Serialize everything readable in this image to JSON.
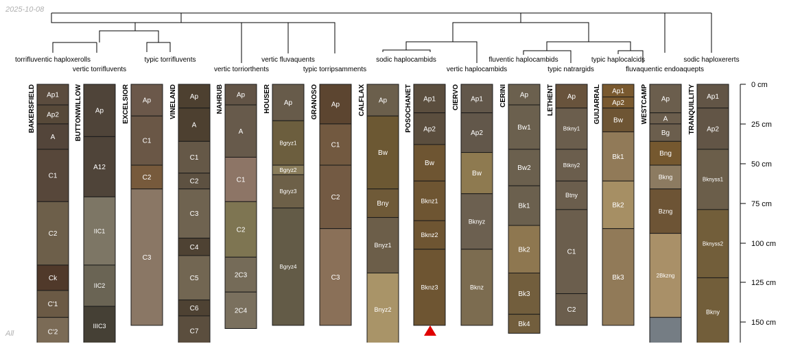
{
  "header": {
    "date": "2025-10-08"
  },
  "footer": {
    "label": "All"
  },
  "scale": {
    "label_0": "0 cm",
    "label_25": "25 cm",
    "label_50": "50 cm",
    "label_75": "75 cm",
    "label_100": "100 cm",
    "label_125": "125 cm",
    "label_150": "150 cm"
  },
  "taxa": [
    "torrifluventic haploxerolls",
    "vertic torrifluvents",
    "typic torrifluvents",
    "vertic torriorthents",
    "vertic fluvaquents",
    "typic torripsamments",
    "sodic haplocambids",
    "vertic haplocambids",
    "fluventic haplocambids",
    "typic natrargids",
    "typic haplocalcids",
    "fluvaquentic endoaquepts",
    "sodic haploxererts"
  ],
  "profiles": [
    {
      "name": "BAKERSFIELD",
      "horizons": [
        {
          "name": "Ap1",
          "top": 0,
          "bottom": 13,
          "color": "#5b4c3e"
        },
        {
          "name": "Ap2",
          "top": 13,
          "bottom": 25,
          "color": "#574939"
        },
        {
          "name": "A",
          "top": 25,
          "bottom": 41,
          "color": "#53453a"
        },
        {
          "name": "C1",
          "top": 41,
          "bottom": 74,
          "color": "#57473a"
        },
        {
          "name": "C2",
          "top": 74,
          "bottom": 114,
          "color": "#6d5f4a"
        },
        {
          "name": "Ck",
          "top": 114,
          "bottom": 130,
          "color": "#50392a"
        },
        {
          "name": "C'1",
          "top": 130,
          "bottom": 147,
          "color": "#6b5a45"
        },
        {
          "name": "C'2",
          "top": 147,
          "bottom": 165,
          "color": "#7b6b56"
        }
      ]
    },
    {
      "name": "BUTTONWILLOW",
      "horizons": [
        {
          "name": "Ap",
          "top": 0,
          "bottom": 33,
          "color": "#4f4439"
        },
        {
          "name": "A12",
          "top": 33,
          "bottom": 71,
          "color": "#4f4439"
        },
        {
          "name": "IIC1",
          "top": 71,
          "bottom": 114,
          "color": "#7d7665"
        },
        {
          "name": "IIC2",
          "top": 114,
          "bottom": 140,
          "color": "#6a6454"
        },
        {
          "name": "IIIC3",
          "top": 140,
          "bottom": 165,
          "color": "#454035"
        }
      ]
    },
    {
      "name": "EXCELSIOR",
      "horizons": [
        {
          "name": "Ap",
          "top": 0,
          "bottom": 20,
          "color": "#6b584a"
        },
        {
          "name": "C1",
          "top": 20,
          "bottom": 51,
          "color": "#6a5746"
        },
        {
          "name": "C2",
          "top": 51,
          "bottom": 66,
          "color": "#775a3c"
        },
        {
          "name": "C3",
          "top": 66,
          "bottom": 152,
          "color": "#8a7765"
        }
      ]
    },
    {
      "name": "VINELAND",
      "horizons": [
        {
          "name": "Ap",
          "top": 0,
          "bottom": 15,
          "color": "#4d4030"
        },
        {
          "name": "A",
          "top": 15,
          "bottom": 36,
          "color": "#4d4030"
        },
        {
          "name": "C1",
          "top": 36,
          "bottom": 56,
          "color": "#655847"
        },
        {
          "name": "C2",
          "top": 56,
          "bottom": 66,
          "color": "#5d5141"
        },
        {
          "name": "C3",
          "top": 66,
          "bottom": 97,
          "color": "#6f6350"
        },
        {
          "name": "C4",
          "top": 97,
          "bottom": 108,
          "color": "#4e4233"
        },
        {
          "name": "C5",
          "top": 108,
          "bottom": 136,
          "color": "#726652"
        },
        {
          "name": "C6",
          "top": 136,
          "bottom": 146,
          "color": "#4e4233"
        },
        {
          "name": "C7",
          "top": 146,
          "bottom": 165,
          "color": "#5b4e3e"
        }
      ]
    },
    {
      "name": "NAHRUB",
      "horizons": [
        {
          "name": "Ap",
          "top": 0,
          "bottom": 13,
          "color": "#625446"
        },
        {
          "name": "A",
          "top": 13,
          "bottom": 46,
          "color": "#675a4b"
        },
        {
          "name": "C1",
          "top": 46,
          "bottom": 74,
          "color": "#8d7566"
        },
        {
          "name": "C2",
          "top": 74,
          "bottom": 109,
          "color": "#7e7552"
        },
        {
          "name": "2C3",
          "top": 109,
          "bottom": 131,
          "color": "#756b58"
        },
        {
          "name": "2C4",
          "top": 131,
          "bottom": 154,
          "color": "#7a705e"
        }
      ]
    },
    {
      "name": "HOUSER",
      "horizons": [
        {
          "name": "Ap",
          "top": 0,
          "bottom": 23,
          "color": "#675b4a"
        },
        {
          "name": "Bgryz1",
          "top": 23,
          "bottom": 51,
          "color": "#6c5e3e"
        },
        {
          "name": "Bgryz2",
          "top": 51,
          "bottom": 57,
          "color": "#8a7d5b"
        },
        {
          "name": "Bgryz3",
          "top": 57,
          "bottom": 78,
          "color": "#6d6048"
        },
        {
          "name": "Bgryz4",
          "top": 78,
          "bottom": 152,
          "color": "#635b47"
        }
      ]
    },
    {
      "name": "GRANOSO",
      "horizons": [
        {
          "name": "Ap",
          "top": 0,
          "bottom": 25,
          "color": "#5c4530"
        },
        {
          "name": "C1",
          "top": 25,
          "bottom": 51,
          "color": "#725940"
        },
        {
          "name": "C2",
          "top": 51,
          "bottom": 91,
          "color": "#735a43"
        },
        {
          "name": "C3",
          "top": 91,
          "bottom": 152,
          "color": "#8a7058"
        }
      ]
    },
    {
      "name": "CALFLAX",
      "horizons": [
        {
          "name": "Ap",
          "top": 0,
          "bottom": 20,
          "color": "#6b5f4c"
        },
        {
          "name": "Bw",
          "top": 20,
          "bottom": 66,
          "color": "#6c5833"
        },
        {
          "name": "Bny",
          "top": 66,
          "bottom": 84,
          "color": "#6f5a38"
        },
        {
          "name": "Bnyz1",
          "top": 84,
          "bottom": 119,
          "color": "#6c5e49"
        },
        {
          "name": "Bnyz2",
          "top": 119,
          "bottom": 165,
          "color": "#a99468"
        }
      ]
    },
    {
      "name": "POSOCHANET",
      "horizons": [
        {
          "name": "Ap1",
          "top": 0,
          "bottom": 18,
          "color": "#5b4e3e"
        },
        {
          "name": "Ap2",
          "top": 18,
          "bottom": 38,
          "color": "#5b4e3e"
        },
        {
          "name": "Bw",
          "top": 38,
          "bottom": 61,
          "color": "#6e5532"
        },
        {
          "name": "Bknz1",
          "top": 61,
          "bottom": 86,
          "color": "#6e5532"
        },
        {
          "name": "Bknz2",
          "top": 86,
          "bottom": 104,
          "color": "#6e5532"
        },
        {
          "name": "Bknz3",
          "top": 104,
          "bottom": 152,
          "color": "#6e5532"
        }
      ]
    },
    {
      "name": "CIERVO",
      "horizons": [
        {
          "name": "Ap1",
          "top": 0,
          "bottom": 18,
          "color": "#62574a"
        },
        {
          "name": "Ap2",
          "top": 18,
          "bottom": 43,
          "color": "#62574a"
        },
        {
          "name": "Bw",
          "top": 43,
          "bottom": 69,
          "color": "#8e7a50"
        },
        {
          "name": "Bknyz",
          "top": 69,
          "bottom": 104,
          "color": "#6c6050"
        },
        {
          "name": "Bknz",
          "top": 104,
          "bottom": 152,
          "color": "#7c6c50"
        }
      ]
    },
    {
      "name": "CERINI",
      "horizons": [
        {
          "name": "Ap",
          "top": 0,
          "bottom": 13,
          "color": "#6b604e"
        },
        {
          "name": "Bw1",
          "top": 13,
          "bottom": 41,
          "color": "#6b604e"
        },
        {
          "name": "Bw2",
          "top": 41,
          "bottom": 64,
          "color": "#6b604e"
        },
        {
          "name": "Bk1",
          "top": 64,
          "bottom": 89,
          "color": "#6b604e"
        },
        {
          "name": "Bk2",
          "top": 89,
          "bottom": 119,
          "color": "#8e7750"
        },
        {
          "name": "Bk3",
          "top": 119,
          "bottom": 145,
          "color": "#725e3d"
        },
        {
          "name": "Bk4",
          "top": 145,
          "bottom": 157,
          "color": "#725e3d"
        }
      ]
    },
    {
      "name": "LETHENT",
      "horizons": [
        {
          "name": "Ap",
          "top": 0,
          "bottom": 15,
          "color": "#68533c"
        },
        {
          "name": "Btkny1",
          "top": 15,
          "bottom": 41,
          "color": "#6b5e4d"
        },
        {
          "name": "Btkny2",
          "top": 41,
          "bottom": 61,
          "color": "#6b5e4d"
        },
        {
          "name": "Btny",
          "top": 61,
          "bottom": 79,
          "color": "#6b5e4d"
        },
        {
          "name": "C1",
          "top": 79,
          "bottom": 132,
          "color": "#6b5e4d"
        },
        {
          "name": "C2",
          "top": 132,
          "bottom": 152,
          "color": "#6b5e4d"
        }
      ]
    },
    {
      "name": "GUIJARRAL",
      "horizons": [
        {
          "name": "Ap1",
          "top": 0,
          "bottom": 8,
          "color": "#79592f"
        },
        {
          "name": "Ap2",
          "top": 8,
          "bottom": 15,
          "color": "#79592f"
        },
        {
          "name": "Bw",
          "top": 15,
          "bottom": 30,
          "color": "#6e5534"
        },
        {
          "name": "Bk1",
          "top": 30,
          "bottom": 61,
          "color": "#917a58"
        },
        {
          "name": "Bk2",
          "top": 61,
          "bottom": 91,
          "color": "#a68f64"
        },
        {
          "name": "Bk3",
          "top": 91,
          "bottom": 152,
          "color": "#917a58"
        }
      ]
    },
    {
      "name": "WESTCAMP",
      "horizons": [
        {
          "name": "Ap",
          "top": 0,
          "bottom": 18,
          "color": "#6b5e4d"
        },
        {
          "name": "A",
          "top": 18,
          "bottom": 25,
          "color": "#6b5e4d"
        },
        {
          "name": "Bg",
          "top": 25,
          "bottom": 36,
          "color": "#6b5e4d"
        },
        {
          "name": "Bng",
          "top": 36,
          "bottom": 51,
          "color": "#75582f"
        },
        {
          "name": "Bkng",
          "top": 51,
          "bottom": 66,
          "color": "#8c7b61"
        },
        {
          "name": "Bzng",
          "top": 66,
          "bottom": 94,
          "color": "#6d5435"
        },
        {
          "name": "2Bkzng",
          "top": 94,
          "bottom": 147,
          "color": "#a99068"
        },
        {
          "name": "",
          "top": 147,
          "bottom": 165,
          "color": "#757d84"
        }
      ]
    },
    {
      "name": "TRANQUILLITY",
      "horizons": [
        {
          "name": "Ap1",
          "top": 0,
          "bottom": 15,
          "color": "#625546"
        },
        {
          "name": "Ap2",
          "top": 15,
          "bottom": 41,
          "color": "#625546"
        },
        {
          "name": "Bknyss1",
          "top": 41,
          "bottom": 79,
          "color": "#6b5e4a"
        },
        {
          "name": "Bknyss2",
          "top": 79,
          "bottom": 122,
          "color": "#725e3a"
        },
        {
          "name": "Bkny",
          "top": 122,
          "bottom": 165,
          "color": "#725e3a"
        }
      ]
    }
  ]
}
